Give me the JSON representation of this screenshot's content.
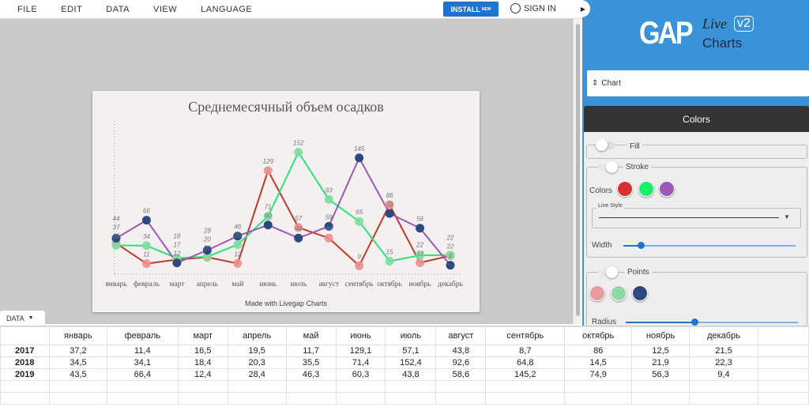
{
  "menu": [
    "FILE",
    "EDIT",
    "DATA",
    "VIEW",
    "LANGUAGE"
  ],
  "install": {
    "label": "INSTALL",
    "badge": "NEW"
  },
  "signin": "SIGN IN",
  "logo": {
    "gap": "GAP",
    "live": "Live",
    "charts": "Charts",
    "version": "v2"
  },
  "panel": {
    "select": "Chart",
    "section": "Colors",
    "fill": "Fill",
    "stroke": "Stroke",
    "colors_label": "Colors",
    "line_style": "Line Style",
    "width": "Width",
    "points": "Points",
    "radius": "Radius",
    "stroke_colors": [
      "#d62f2f",
      "#19f06a",
      "#9b59b6"
    ],
    "point_colors": [
      "#e79a9a",
      "#8fd9a8",
      "#2c4a80"
    ],
    "width_value": 0.1,
    "radius_value": 0.4
  },
  "data_tab": "DATA",
  "chart_data": {
    "type": "line",
    "title": "Среднемесячный объем осадков",
    "footer": "Made with Livegap Charts",
    "categories": [
      "январь",
      "февраль",
      "март",
      "апрель",
      "май",
      "июнь",
      "июль",
      "август",
      "сентябрь",
      "октябрь",
      "ноябрь",
      "декабрь"
    ],
    "ylim": [
      0,
      160
    ],
    "series": [
      {
        "name": "2017",
        "values": [
          37.2,
          11.4,
          16.5,
          19.5,
          11.7,
          129.1,
          57.1,
          43.8,
          8.7,
          86,
          12.5,
          21.5
        ],
        "line": "#c0392b",
        "point": "#ec8f8f"
      },
      {
        "name": "2018",
        "values": [
          34.5,
          34.1,
          18.4,
          20.3,
          35.5,
          71.4,
          152.4,
          92.6,
          64.8,
          14.5,
          21.9,
          22.3
        ],
        "line": "#2ee07a",
        "point": "#7fdc9e"
      },
      {
        "name": "2019",
        "values": [
          43.5,
          66.4,
          12.4,
          28.4,
          46.3,
          60.3,
          43.8,
          58.6,
          145.2,
          74.9,
          56.3,
          9.4
        ],
        "line": "#9b59b6",
        "point": "#2c4a80"
      }
    ]
  },
  "table": {
    "headers": [
      "январь",
      "февраль",
      "март",
      "апрель",
      "май",
      "июнь",
      "июль",
      "август",
      "сентябрь",
      "октябрь",
      "ноябрь",
      "декабрь"
    ],
    "rows": [
      [
        "2017",
        "37,2",
        "11,4",
        "16,5",
        "19,5",
        "11,7",
        "129,1",
        "57,1",
        "43,8",
        "8,7",
        "86",
        "12,5",
        "21,5"
      ],
      [
        "2018",
        "34,5",
        "34,1",
        "18,4",
        "20,3",
        "35,5",
        "71,4",
        "152,4",
        "92,6",
        "64,8",
        "14,5",
        "21,9",
        "22,3"
      ],
      [
        "2019",
        "43,5",
        "66,4",
        "12,4",
        "28,4",
        "46,3",
        "60,3",
        "43,8",
        "58,6",
        "145,2",
        "74,9",
        "56,3",
        "9,4"
      ]
    ]
  }
}
